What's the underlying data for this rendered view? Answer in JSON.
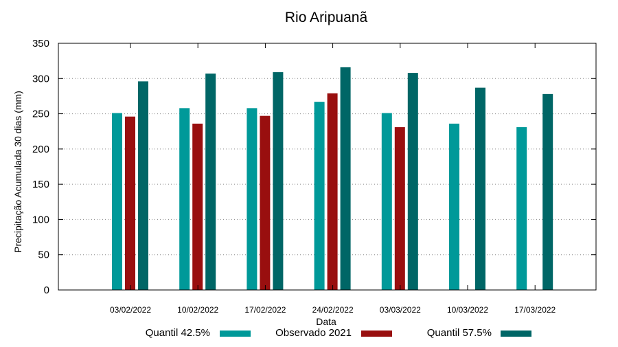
{
  "chart_data": {
    "type": "bar",
    "title": "Rio Aripuanã",
    "xlabel": "Data",
    "ylabel": "Precipitação Acumulada 30 dias (mm)",
    "ylim": [
      0,
      350
    ],
    "yticks": [
      0,
      50,
      100,
      150,
      200,
      250,
      300,
      350
    ],
    "grid": true,
    "legend_position": "bottom",
    "categories": [
      "03/02/2022",
      "10/02/2022",
      "17/02/2022",
      "24/02/2022",
      "03/03/2022",
      "10/03/2022",
      "17/03/2022"
    ],
    "series": [
      {
        "name": "Quantil 42.5%",
        "color": "#009999",
        "values": [
          251,
          258,
          258,
          267,
          251,
          236,
          231
        ]
      },
      {
        "name": "Observado 2021",
        "color": "#990f0f",
        "values": [
          246,
          236,
          247,
          279,
          231,
          null,
          null
        ]
      },
      {
        "name": "Quantil 57.5%",
        "color": "#006666",
        "values": [
          296,
          307,
          309,
          316,
          308,
          287,
          278
        ]
      }
    ]
  }
}
